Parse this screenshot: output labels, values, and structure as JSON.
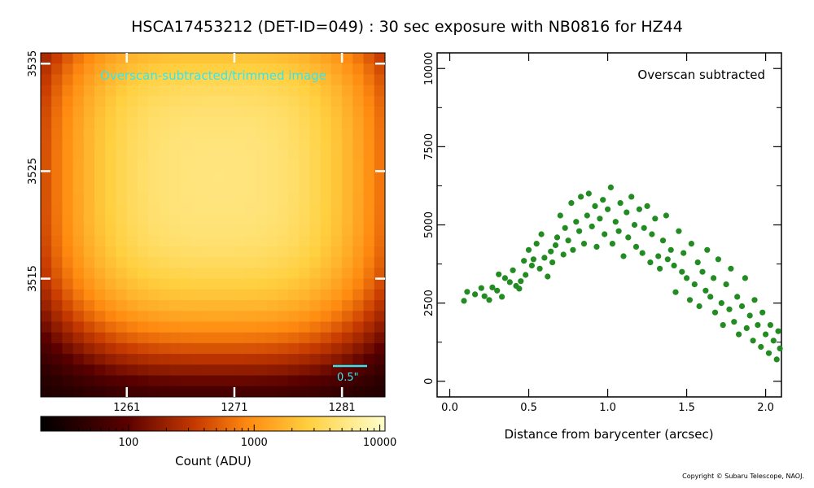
{
  "title": "HSCA17453212 (DET-ID=049) :  30 sec exposure with NB0816 for HZ44",
  "copyright": "Copyright © Subaru Telescope, NAOJ.",
  "chart_data": [
    {
      "type": "heatmap",
      "annotation": "Overscan-subtracted/trimmed image",
      "annotation_color": "#33e6ee",
      "scalebar_label": "0.5\"",
      "x_ticks": [
        1261,
        1271,
        1281
      ],
      "y_ticks": [
        3535,
        3525,
        3515
      ],
      "xlim": [
        1253,
        1285
      ],
      "ylim": [
        3504,
        3536
      ],
      "grid_size": 32,
      "center_x": 1269.5,
      "center_y": 3524.5,
      "peak_counts": 5000,
      "colormap": "afmhot",
      "colorbar": {
        "scale": "log",
        "range": [
          20,
          11000
        ],
        "ticks": [
          100,
          1000,
          10000
        ],
        "tick_labels": [
          "100",
          "1000",
          "10000"
        ],
        "label": "Count (ADU)"
      }
    },
    {
      "type": "scatter",
      "annotation": "Overscan subtracted",
      "xlabel": "Distance from barycenter (arcsec)",
      "xlim": [
        -0.08,
        2.1
      ],
      "ylim": [
        -500,
        10500
      ],
      "x_ticks": [
        0.0,
        0.5,
        1.0,
        1.5,
        2.0
      ],
      "x_tick_labels": [
        "0.0",
        "0.5",
        "1.0",
        "1.5",
        "2.0"
      ],
      "y_ticks": [
        0,
        2500,
        5000,
        7500,
        10000
      ],
      "y_tick_labels": [
        "0",
        "2500",
        "5000",
        "7500",
        "10000"
      ],
      "marker_color": "#228b22",
      "points": [
        [
          0.09,
          2570
        ],
        [
          0.11,
          2860
        ],
        [
          0.16,
          2780
        ],
        [
          0.2,
          2980
        ],
        [
          0.22,
          2720
        ],
        [
          0.25,
          2600
        ],
        [
          0.27,
          3000
        ],
        [
          0.3,
          2900
        ],
        [
          0.31,
          3420
        ],
        [
          0.33,
          2700
        ],
        [
          0.35,
          3300
        ],
        [
          0.38,
          3170
        ],
        [
          0.4,
          3550
        ],
        [
          0.42,
          3050
        ],
        [
          0.44,
          2960
        ],
        [
          0.45,
          3200
        ],
        [
          0.47,
          3850
        ],
        [
          0.48,
          3400
        ],
        [
          0.5,
          4200
        ],
        [
          0.52,
          3700
        ],
        [
          0.53,
          3900
        ],
        [
          0.55,
          4400
        ],
        [
          0.57,
          3600
        ],
        [
          0.58,
          4700
        ],
        [
          0.6,
          3950
        ],
        [
          0.62,
          3350
        ],
        [
          0.64,
          4150
        ],
        [
          0.65,
          3800
        ],
        [
          0.67,
          4350
        ],
        [
          0.68,
          4600
        ],
        [
          0.7,
          5300
        ],
        [
          0.72,
          4050
        ],
        [
          0.73,
          4900
        ],
        [
          0.75,
          4500
        ],
        [
          0.77,
          5700
        ],
        [
          0.78,
          4200
        ],
        [
          0.8,
          5100
        ],
        [
          0.82,
          4800
        ],
        [
          0.83,
          5900
        ],
        [
          0.85,
          4400
        ],
        [
          0.87,
          5300
        ],
        [
          0.88,
          6000
        ],
        [
          0.9,
          4950
        ],
        [
          0.92,
          5600
        ],
        [
          0.93,
          4300
        ],
        [
          0.95,
          5200
        ],
        [
          0.97,
          5800
        ],
        [
          0.98,
          4700
        ],
        [
          1.0,
          5500
        ],
        [
          1.02,
          6200
        ],
        [
          1.03,
          4400
        ],
        [
          1.05,
          5100
        ],
        [
          1.07,
          4800
        ],
        [
          1.08,
          5700
        ],
        [
          1.1,
          4000
        ],
        [
          1.12,
          5400
        ],
        [
          1.13,
          4600
        ],
        [
          1.15,
          5900
        ],
        [
          1.17,
          5000
        ],
        [
          1.18,
          4300
        ],
        [
          1.2,
          5500
        ],
        [
          1.22,
          4100
        ],
        [
          1.23,
          4900
        ],
        [
          1.25,
          5600
        ],
        [
          1.27,
          3800
        ],
        [
          1.28,
          4700
        ],
        [
          1.3,
          5200
        ],
        [
          1.32,
          4000
        ],
        [
          1.33,
          3600
        ],
        [
          1.35,
          4500
        ],
        [
          1.37,
          5300
        ],
        [
          1.38,
          3900
        ],
        [
          1.4,
          4200
        ],
        [
          1.42,
          3700
        ],
        [
          1.43,
          2850
        ],
        [
          1.45,
          4800
        ],
        [
          1.47,
          3500
        ],
        [
          1.48,
          4100
        ],
        [
          1.5,
          3300
        ],
        [
          1.52,
          2600
        ],
        [
          1.53,
          4400
        ],
        [
          1.55,
          3100
        ],
        [
          1.57,
          3800
        ],
        [
          1.58,
          2400
        ],
        [
          1.6,
          3500
        ],
        [
          1.62,
          2900
        ],
        [
          1.63,
          4200
        ],
        [
          1.65,
          2700
        ],
        [
          1.67,
          3300
        ],
        [
          1.68,
          2200
        ],
        [
          1.7,
          3900
        ],
        [
          1.72,
          2500
        ],
        [
          1.73,
          1800
        ],
        [
          1.75,
          3100
        ],
        [
          1.77,
          2300
        ],
        [
          1.78,
          3600
        ],
        [
          1.8,
          1900
        ],
        [
          1.82,
          2700
        ],
        [
          1.83,
          1500
        ],
        [
          1.85,
          2400
        ],
        [
          1.87,
          3300
        ],
        [
          1.88,
          1700
        ],
        [
          1.9,
          2100
        ],
        [
          1.92,
          1300
        ],
        [
          1.93,
          2600
        ],
        [
          1.95,
          1800
        ],
        [
          1.97,
          1100
        ],
        [
          1.98,
          2200
        ],
        [
          2.0,
          1500
        ],
        [
          2.02,
          900
        ],
        [
          2.03,
          1800
        ],
        [
          2.05,
          1300
        ],
        [
          2.07,
          700
        ],
        [
          2.08,
          1600
        ],
        [
          2.09,
          1050
        ]
      ]
    }
  ]
}
